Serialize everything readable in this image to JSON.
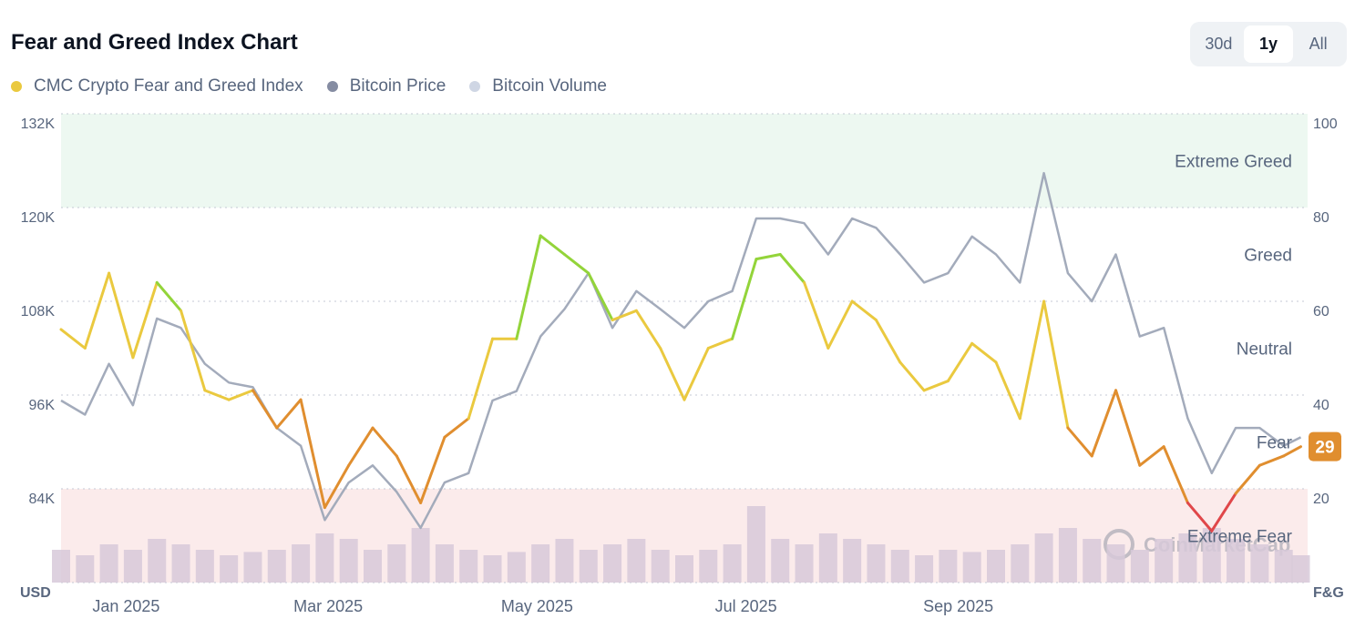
{
  "title": "Fear and Greed Index Chart",
  "legend": [
    {
      "label": "CMC Crypto Fear and Greed Index",
      "color": "#eac93f"
    },
    {
      "label": "Bitcoin Price",
      "color": "#858ca2"
    },
    {
      "label": "Bitcoin Volume",
      "color": "#cfd6e4"
    }
  ],
  "range_buttons": [
    {
      "label": "30d",
      "active": false
    },
    {
      "label": "1y",
      "active": true
    },
    {
      "label": "All",
      "active": false
    }
  ],
  "chart_data": {
    "type": "line",
    "left_axis_unit": "USD",
    "right_axis_unit": "F&G",
    "left_ticks": [
      "132K",
      "120K",
      "108K",
      "96K",
      "84K"
    ],
    "left_range_k": [
      72,
      132
    ],
    "right_ticks": [
      "100",
      "80",
      "60",
      "40",
      "20"
    ],
    "right_range": [
      0,
      100
    ],
    "x_ticks": [
      {
        "label": "Jan 2025",
        "date": "2025-01-01"
      },
      {
        "label": "Mar 2025",
        "date": "2025-03-01"
      },
      {
        "label": "May 2025",
        "date": "2025-05-01"
      },
      {
        "label": "Jul 2025",
        "date": "2025-07-01"
      },
      {
        "label": "Sep 2025",
        "date": "2025-09-01"
      }
    ],
    "x_range": [
      "2024-12-13",
      "2025-12-12"
    ],
    "zones": [
      {
        "label": "Extreme Greed",
        "from": 80,
        "to": 100,
        "fill": "#edf8f1",
        "line": "#93d43a"
      },
      {
        "label": "Greed",
        "from": 60,
        "to": 80,
        "fill": "none",
        "line": "#93d43a"
      },
      {
        "label": "Neutral",
        "from": 40,
        "to": 60,
        "fill": "none",
        "line": "#eac93f"
      },
      {
        "label": "Fear",
        "from": 20,
        "to": 40,
        "fill": "none",
        "line": "#e08e2f"
      },
      {
        "label": "Extreme Fear",
        "from": 0,
        "to": 20,
        "fill": "#fbebeb",
        "line": "#e0474a"
      }
    ],
    "grid": true,
    "current_value": "29",
    "current_color": "#e08e2f",
    "dates": [
      "2024-12-13",
      "2024-12-20",
      "2024-12-27",
      "2025-01-03",
      "2025-01-10",
      "2025-01-17",
      "2025-01-24",
      "2025-01-31",
      "2025-02-07",
      "2025-02-14",
      "2025-02-21",
      "2025-02-28",
      "2025-03-07",
      "2025-03-14",
      "2025-03-21",
      "2025-03-28",
      "2025-04-04",
      "2025-04-11",
      "2025-04-18",
      "2025-04-25",
      "2025-05-02",
      "2025-05-09",
      "2025-05-16",
      "2025-05-23",
      "2025-05-30",
      "2025-06-06",
      "2025-06-13",
      "2025-06-20",
      "2025-06-27",
      "2025-07-04",
      "2025-07-11",
      "2025-07-18",
      "2025-07-25",
      "2025-08-01",
      "2025-08-08",
      "2025-08-15",
      "2025-08-22",
      "2025-08-29",
      "2025-09-05",
      "2025-09-12",
      "2025-09-19",
      "2025-09-26",
      "2025-10-03",
      "2025-10-10",
      "2025-10-17",
      "2025-10-24",
      "2025-10-31",
      "2025-11-07",
      "2025-11-14",
      "2025-11-21",
      "2025-11-28",
      "2025-12-05",
      "2025-12-10"
    ],
    "series": [
      {
        "name": "CMC Crypto Fear and Greed Index",
        "axis": "right",
        "values": [
          54,
          50,
          66,
          48,
          64,
          58,
          41,
          39,
          41,
          33,
          39,
          16,
          25,
          33,
          27,
          17,
          31,
          35,
          52,
          52,
          74,
          70,
          66,
          56,
          58,
          50,
          39,
          50,
          52,
          69,
          70,
          64,
          50,
          60,
          56,
          47,
          41,
          43,
          51,
          47,
          35,
          60,
          33,
          27,
          41,
          25,
          29,
          17,
          11,
          19,
          25,
          27,
          29
        ]
      },
      {
        "name": "Bitcoin Price",
        "axis": "left",
        "unit": "K USD",
        "color": "#a3abbb",
        "values": [
          95.3,
          93.5,
          100,
          94.7,
          105.8,
          104.6,
          100,
          97.6,
          97,
          91.8,
          89.5,
          80,
          84.8,
          87,
          83.6,
          79,
          84.8,
          86,
          95.3,
          96.5,
          103.5,
          107,
          111.6,
          104.6,
          109.3,
          107,
          104.6,
          108,
          109.3,
          118.6,
          118.6,
          118,
          114,
          118.6,
          117.4,
          114,
          110.4,
          111.6,
          116.3,
          114,
          110.4,
          124.4,
          111.6,
          108,
          114,
          103.5,
          104.6,
          93,
          86,
          91.8,
          91.8,
          89.5,
          90.6
        ]
      },
      {
        "name": "Bitcoin Volume",
        "axis": "relative",
        "color": "#d7c9d9",
        "values": [
          30,
          25,
          35,
          30,
          40,
          35,
          30,
          25,
          28,
          30,
          35,
          45,
          40,
          30,
          35,
          50,
          35,
          30,
          25,
          28,
          35,
          40,
          30,
          35,
          40,
          30,
          25,
          30,
          35,
          70,
          40,
          35,
          45,
          40,
          35,
          30,
          25,
          30,
          28,
          30,
          35,
          45,
          50,
          40,
          35,
          30,
          40,
          45,
          50,
          40,
          35,
          30,
          25
        ]
      }
    ]
  },
  "watermark": "CoinMarketCap"
}
